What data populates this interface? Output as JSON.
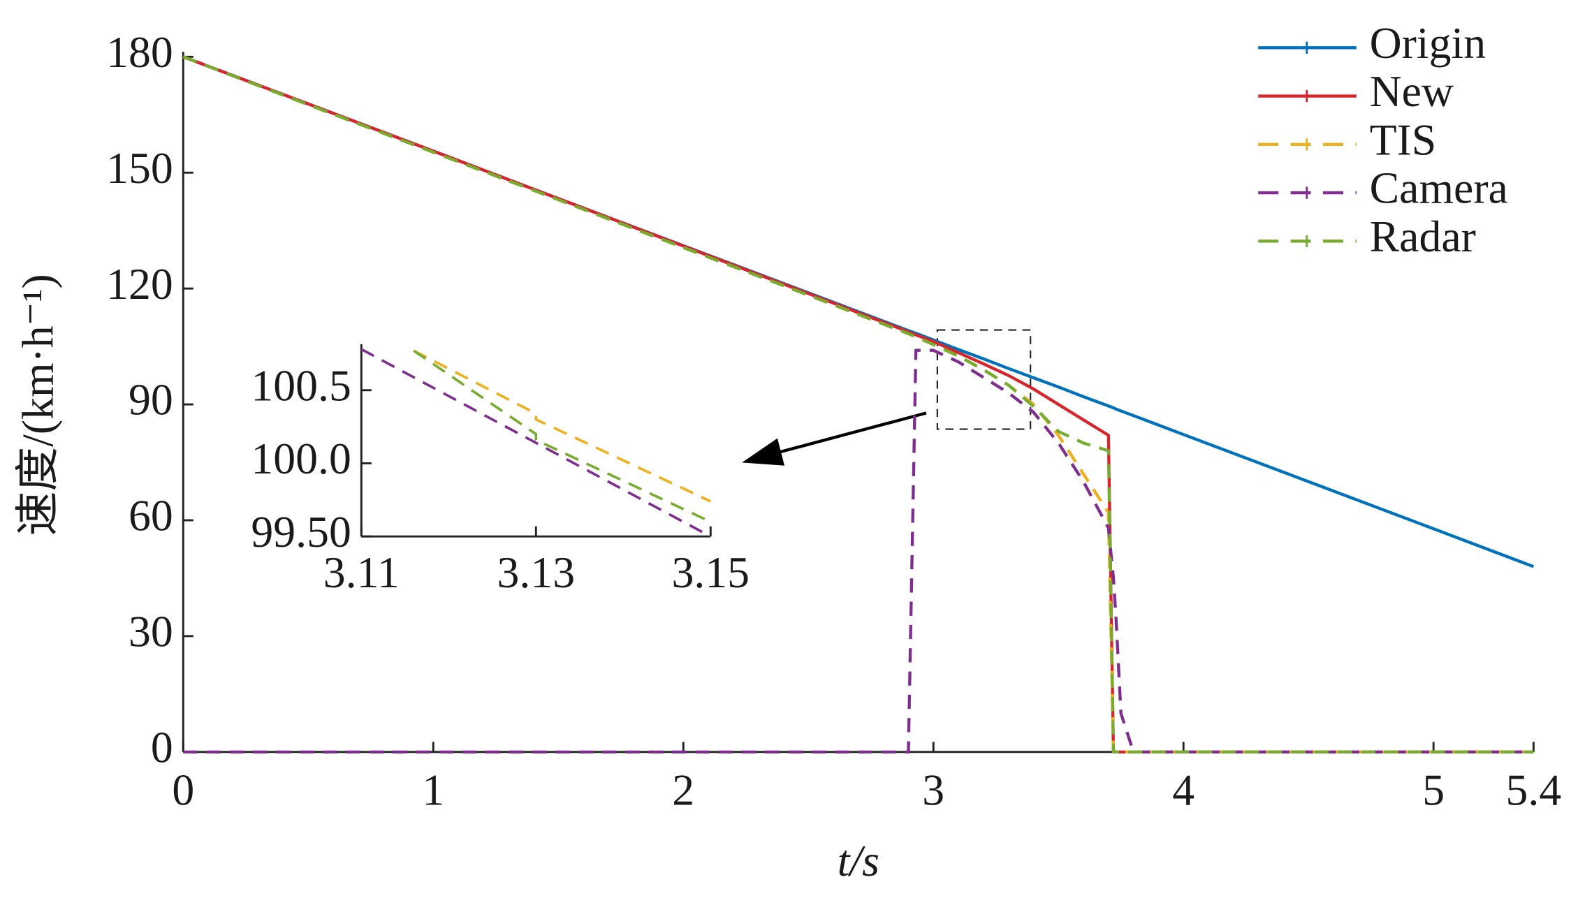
{
  "chart_data": [
    {
      "type": "line",
      "xlabel": "t/s",
      "ylabel": "速度/(km·h⁻¹)",
      "x": [
        0,
        0.5,
        1,
        1.5,
        2,
        2.5,
        2.9,
        2.93,
        3.0,
        3.1,
        3.2,
        3.3,
        3.4,
        3.5,
        3.6,
        3.7,
        3.72,
        3.73,
        3.75,
        3.8,
        4,
        4.5,
        5,
        5.4
      ],
      "series": [
        {
          "name": "Origin",
          "color": "#0072bd",
          "dash": false,
          "values": [
            180,
            167.8,
            155.6,
            143.3,
            131.1,
            118.9,
            109.1,
            108.4,
            106.7,
            104.2,
            101.8,
            99.3,
            96.9,
            94.5,
            92.0,
            89.6,
            89.1,
            88.8,
            88.3,
            87.1,
            82.2,
            70.0,
            57.8,
            48.0
          ]
        },
        {
          "name": "New",
          "color": "#d7262b",
          "dash": false,
          "values": [
            180,
            167.8,
            155.6,
            143.3,
            131.0,
            118.7,
            108.8,
            108.0,
            106.3,
            103.4,
            100.5,
            97.5,
            94,
            90,
            86,
            82,
            0,
            0,
            0,
            0,
            0,
            0,
            0,
            0
          ]
        },
        {
          "name": "TIS",
          "color": "#edb120",
          "dash": true,
          "values": [
            180,
            167.6,
            155.3,
            143,
            130.6,
            118.3,
            108.3,
            107.5,
            105.5,
            102.5,
            99,
            95,
            90,
            82,
            72,
            62,
            0,
            0,
            0,
            0,
            0,
            0,
            0,
            0
          ]
        },
        {
          "name": "Camera",
          "color": "#7e2f8e",
          "dash": true,
          "values": [
            0,
            0,
            0,
            0,
            0,
            0,
            0,
            104,
            104,
            101,
            97,
            93,
            88,
            80,
            70,
            58,
            45,
            35,
            10,
            0,
            0,
            0,
            0,
            0
          ]
        },
        {
          "name": "Radar",
          "color": "#77ac30",
          "dash": true,
          "values": [
            180,
            167.6,
            155.3,
            143,
            130.6,
            118.3,
            108.3,
            107.5,
            105.5,
            102.5,
            99,
            95,
            89.5,
            83,
            80,
            78,
            0,
            0,
            0,
            0,
            0,
            0,
            0,
            0
          ]
        }
      ],
      "xlim": [
        0,
        5.4
      ],
      "ylim": [
        0,
        180
      ],
      "xticks": [
        0,
        1,
        2,
        3,
        4,
        5,
        5.4
      ],
      "yticks": [
        0,
        30,
        60,
        90,
        120,
        150,
        180
      ],
      "legend": "upper right",
      "grid": false
    },
    {
      "type": "line",
      "series": [
        {
          "color": "#edb120",
          "dash": true,
          "x": [
            3.116,
            3.13,
            3.13,
            3.15
          ],
          "values": [
            100.77,
            100.34,
            100.3,
            99.74
          ]
        },
        {
          "color": "#7e2f8e",
          "dash": true,
          "x": [
            3.11,
            3.15
          ],
          "values": [
            100.78,
            99.5
          ]
        },
        {
          "color": "#77ac30",
          "dash": true,
          "x": [
            3.116,
            3.13,
            3.13,
            3.15
          ],
          "values": [
            100.77,
            100.2,
            100.16,
            99.6
          ]
        }
      ],
      "xlim": [
        3.11,
        3.15
      ],
      "ylim": [
        99.5,
        100.78
      ],
      "xticks": [
        3.11,
        3.13,
        3.15
      ],
      "yticks": [
        {
          "value": 99.5,
          "label": "99.50"
        },
        {
          "value": 100,
          "label": "100.0"
        },
        100.5
      ],
      "grid": false
    }
  ]
}
